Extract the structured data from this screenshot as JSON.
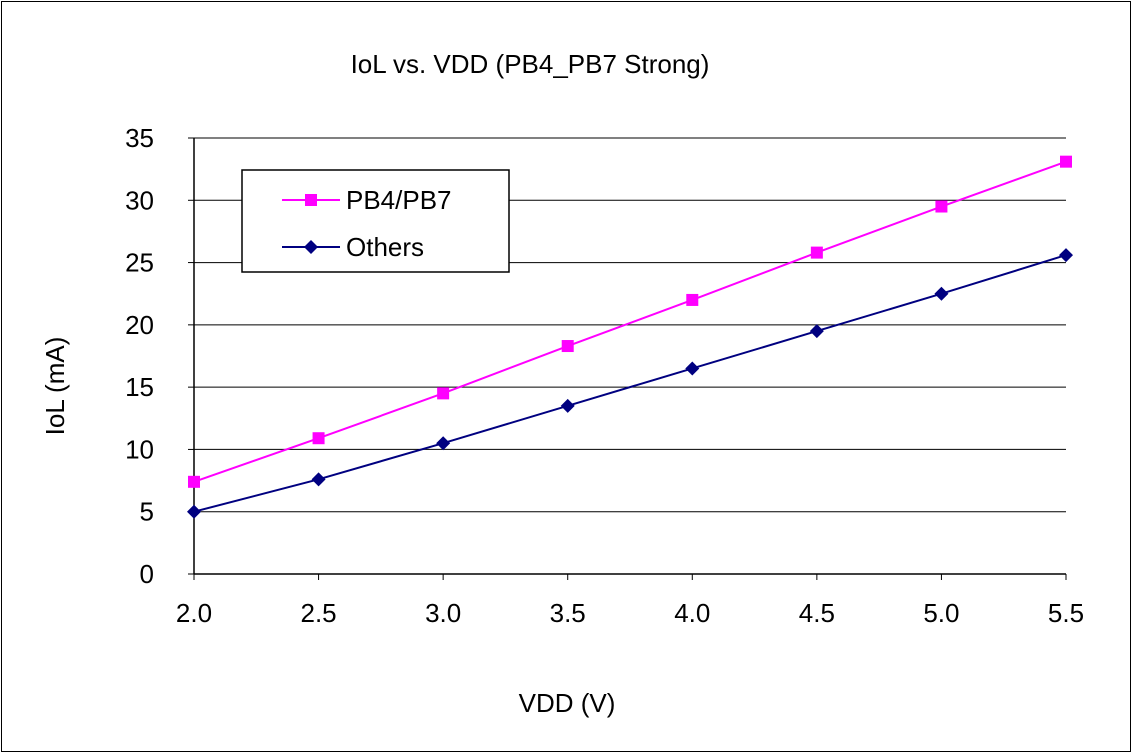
{
  "chart_data": {
    "type": "line",
    "title": "IoL vs. VDD (PB4_PB7 Strong)",
    "xlabel": "VDD (V)",
    "ylabel": "IoL (mA)",
    "x": [
      2.0,
      2.5,
      3.0,
      3.5,
      4.0,
      4.5,
      5.0,
      5.5
    ],
    "x_tick_labels": [
      "2.0",
      "2.5",
      "3.0",
      "3.5",
      "4.0",
      "4.5",
      "5.0",
      "5.5"
    ],
    "y_tick_labels": [
      "0",
      "5",
      "10",
      "15",
      "20",
      "25",
      "30",
      "35"
    ],
    "xlim": [
      2.0,
      5.5
    ],
    "ylim": [
      0,
      35
    ],
    "grid": "horizontal",
    "legend_position": "top-left",
    "series": [
      {
        "name": "PB4/PB7",
        "color": "#ff00ff",
        "marker": "square",
        "values": [
          7.4,
          10.9,
          14.5,
          18.3,
          22.0,
          25.8,
          29.5,
          33.1
        ]
      },
      {
        "name": "Others",
        "color": "#000080",
        "marker": "diamond",
        "values": [
          5.0,
          7.6,
          10.5,
          13.5,
          16.5,
          19.5,
          22.5,
          25.6
        ]
      }
    ]
  }
}
